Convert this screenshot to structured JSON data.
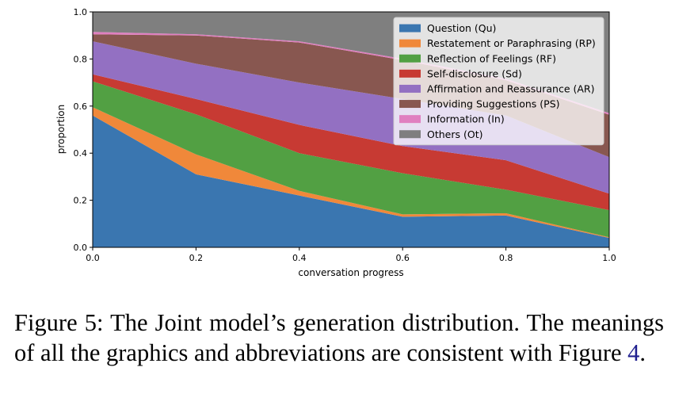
{
  "chart_data": {
    "type": "area",
    "stacked": true,
    "xlabel": "conversation progress",
    "ylabel": "proportion",
    "xlim": [
      0.0,
      1.0
    ],
    "ylim": [
      0.0,
      1.0
    ],
    "xticks": [
      "0.0",
      "0.2",
      "0.4",
      "0.6",
      "0.8",
      "1.0"
    ],
    "yticks": [
      "0.0",
      "0.2",
      "0.4",
      "0.6",
      "0.8",
      "1.0"
    ],
    "x": [
      0.0,
      0.2,
      0.4,
      0.6,
      0.8,
      1.0
    ],
    "legend_position": "top-right",
    "grid": false,
    "series": [
      {
        "name": "Question (Qu)",
        "color": "#3a76b0",
        "values": [
          0.56,
          0.31,
          0.22,
          0.13,
          0.135,
          0.04
        ]
      },
      {
        "name": "Restatement or Paraphrasing (RP)",
        "color": "#f0883a",
        "values": [
          0.035,
          0.085,
          0.02,
          0.01,
          0.01,
          0.003
        ]
      },
      {
        "name": "Reflection of Feelings (RF)",
        "color": "#52a043",
        "values": [
          0.11,
          0.17,
          0.16,
          0.175,
          0.1,
          0.115
        ]
      },
      {
        "name": "Self-disclosure (Sd)",
        "color": "#c73a33",
        "values": [
          0.03,
          0.065,
          0.12,
          0.115,
          0.125,
          0.07
        ]
      },
      {
        "name": "Affirmation and Reassurance (AR)",
        "color": "#9370c2",
        "values": [
          0.14,
          0.15,
          0.18,
          0.2,
          0.19,
          0.155
        ]
      },
      {
        "name": "Providing Suggestions (PS)",
        "color": "#885750",
        "values": [
          0.03,
          0.12,
          0.17,
          0.165,
          0.15,
          0.18
        ]
      },
      {
        "name": "Information (In)",
        "color": "#e07fc0",
        "values": [
          0.01,
          0.005,
          0.005,
          0.006,
          0.006,
          0.007
        ]
      },
      {
        "name": "Others (Ot)",
        "color": "#7f7f7f",
        "values": [
          0.085,
          0.095,
          0.125,
          0.199,
          0.284,
          0.43
        ]
      }
    ]
  },
  "caption": {
    "text": "Figure 5:  The Joint model’s generation distribution. The meanings of all the graphics and abbreviations are consistent with Figure ",
    "ref": "4",
    "end": "."
  }
}
